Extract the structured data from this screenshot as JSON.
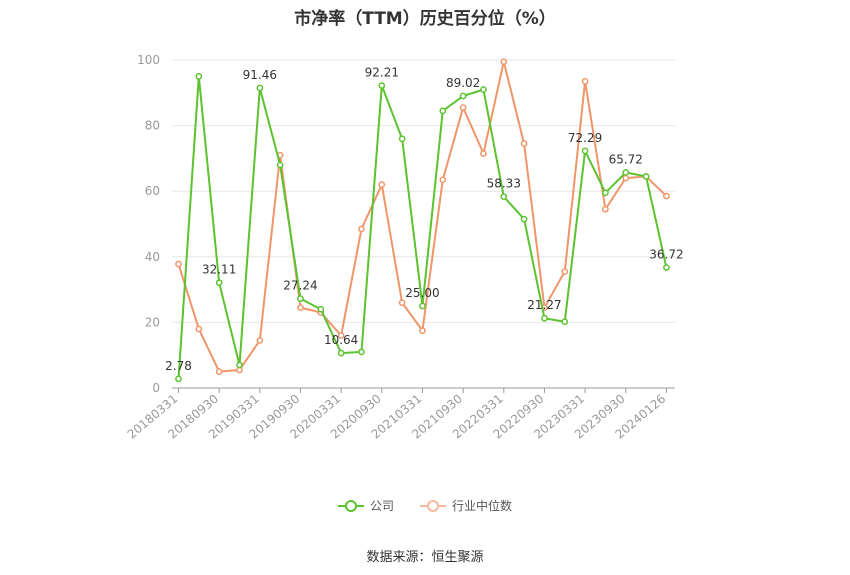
{
  "chart_data": {
    "type": "line",
    "title": "市净率（TTM）历史百分位（%）",
    "source": "数据来源：恒生聚源",
    "ylim": [
      0,
      100
    ],
    "y_ticks": [
      0,
      20,
      40,
      60,
      80,
      100
    ],
    "grid": true,
    "legend_position": "bottom",
    "x": [
      "20180331",
      "20180630",
      "20180930",
      "20181231",
      "20190331",
      "20190630",
      "20190930",
      "20191231",
      "20200331",
      "20200630",
      "20200930",
      "20201231",
      "20210331",
      "20210630",
      "20210930",
      "20211231",
      "20220331",
      "20220630",
      "20220930",
      "20221231",
      "20230331",
      "20230630",
      "20230930",
      "20231231",
      "20240126"
    ],
    "x_tick_labels": [
      "20180331",
      "20180930",
      "20190331",
      "20190930",
      "20200331",
      "20200930",
      "20210331",
      "20210930",
      "20220331",
      "20220930",
      "20230331",
      "20230930",
      "20240126"
    ],
    "x_tick_indices": [
      0,
      2,
      4,
      6,
      8,
      10,
      12,
      14,
      16,
      18,
      20,
      22,
      24
    ],
    "series": [
      {
        "name": "公司",
        "color": "#5cc22f",
        "values": [
          2.78,
          95,
          32.11,
          7,
          91.46,
          68,
          27.24,
          24,
          10.64,
          11,
          92.21,
          76,
          25.0,
          84.5,
          89.02,
          91,
          58.33,
          51.5,
          21.27,
          20.2,
          72.29,
          59.5,
          65.72,
          64.5,
          36.72
        ],
        "labels": {
          "0": "2.78",
          "2": "32.11",
          "4": "91.46",
          "6": "27.24",
          "8": "10.64",
          "10": "92.21",
          "12": "25.00",
          "14": "89.02",
          "16": "58.33",
          "18": "21.27",
          "20": "72.29",
          "22": "65.72",
          "24": "36.72"
        }
      },
      {
        "name": "行业中位数",
        "color": "#f0956a",
        "values": [
          37.8,
          18,
          5,
          5.5,
          14.5,
          71,
          24.5,
          23,
          16,
          48.5,
          62,
          26,
          17.5,
          63.5,
          85.5,
          71.5,
          99.5,
          74.5,
          24.5,
          35.5,
          93.5,
          54.5,
          64,
          64.5,
          58.5
        ]
      }
    ]
  }
}
